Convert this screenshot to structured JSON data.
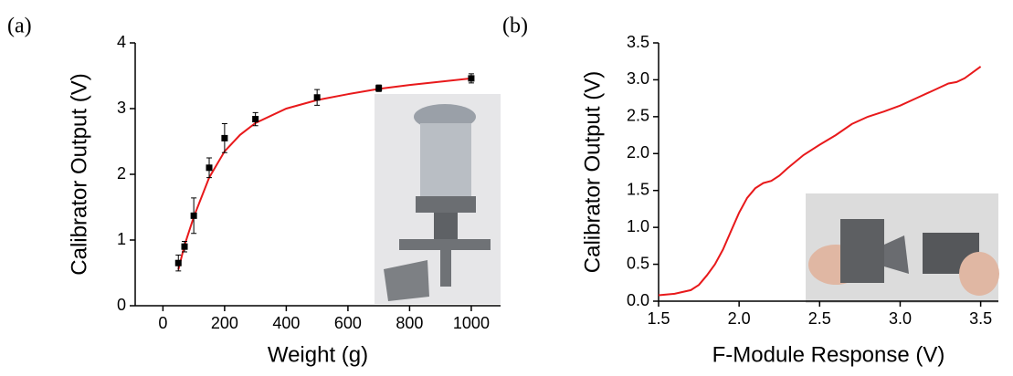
{
  "chart_data": [
    {
      "type": "scatter",
      "label": "(a)",
      "x_label": "Weight (g)",
      "y_label": "Calibrator Output (V)",
      "xlim": [
        -90,
        1095
      ],
      "ylim": [
        0,
        4
      ],
      "xticks": [
        0,
        200,
        400,
        600,
        800,
        1000
      ],
      "yticks": [
        0,
        1,
        2,
        3,
        4
      ],
      "series": [
        {
          "type": "line",
          "color": "#e8191b",
          "x": [
            50,
            70,
            100,
            150,
            200,
            250,
            300,
            400,
            500,
            600,
            700,
            800,
            900,
            1000
          ],
          "values": [
            0.55,
            0.92,
            1.35,
            1.95,
            2.35,
            2.6,
            2.78,
            3.0,
            3.13,
            3.22,
            3.3,
            3.36,
            3.41,
            3.46
          ]
        },
        {
          "type": "scatter",
          "color": "#000000",
          "x": [
            50,
            70,
            100,
            150,
            200,
            300,
            500,
            700,
            1000
          ],
          "values": [
            0.65,
            0.9,
            1.37,
            2.1,
            2.55,
            2.84,
            3.17,
            3.31,
            3.46
          ],
          "errors": [
            0.12,
            0.08,
            0.27,
            0.15,
            0.22,
            0.1,
            0.12,
            0.05,
            0.07
          ]
        }
      ]
    },
    {
      "type": "line",
      "label": "(b)",
      "x_label": "F-Module Response (V)",
      "y_label": "Calibrator Output (V)",
      "xlim": [
        1.5,
        3.61
      ],
      "ylim": [
        0,
        3.5
      ],
      "xticks": [
        1.5,
        {
          "value": 2,
          "label": "2.0"
        },
        2.5,
        {
          "value": 3,
          "label": "3.0"
        },
        3.5
      ],
      "yticks": [
        {
          "value": 0,
          "label": "0.0"
        },
        0.5,
        {
          "value": 1,
          "label": "1.0"
        },
        1.5,
        {
          "value": 2,
          "label": "2.0"
        },
        2.5,
        {
          "value": 3,
          "label": "3.0"
        },
        3.5
      ],
      "series": [
        {
          "type": "line",
          "color": "#e8191b",
          "x": [
            1.5,
            1.6,
            1.7,
            1.75,
            1.8,
            1.85,
            1.9,
            1.95,
            2.0,
            2.05,
            2.1,
            2.15,
            2.2,
            2.25,
            2.3,
            2.4,
            2.5,
            2.6,
            2.7,
            2.8,
            2.9,
            3.0,
            3.1,
            3.2,
            3.3,
            3.35,
            3.4,
            3.5
          ],
          "values": [
            0.08,
            0.1,
            0.15,
            0.22,
            0.35,
            0.5,
            0.7,
            0.95,
            1.2,
            1.4,
            1.53,
            1.6,
            1.63,
            1.7,
            1.8,
            1.98,
            2.12,
            2.25,
            2.4,
            2.5,
            2.57,
            2.65,
            2.75,
            2.85,
            2.95,
            2.97,
            3.02,
            3.18
          ]
        }
      ]
    }
  ]
}
